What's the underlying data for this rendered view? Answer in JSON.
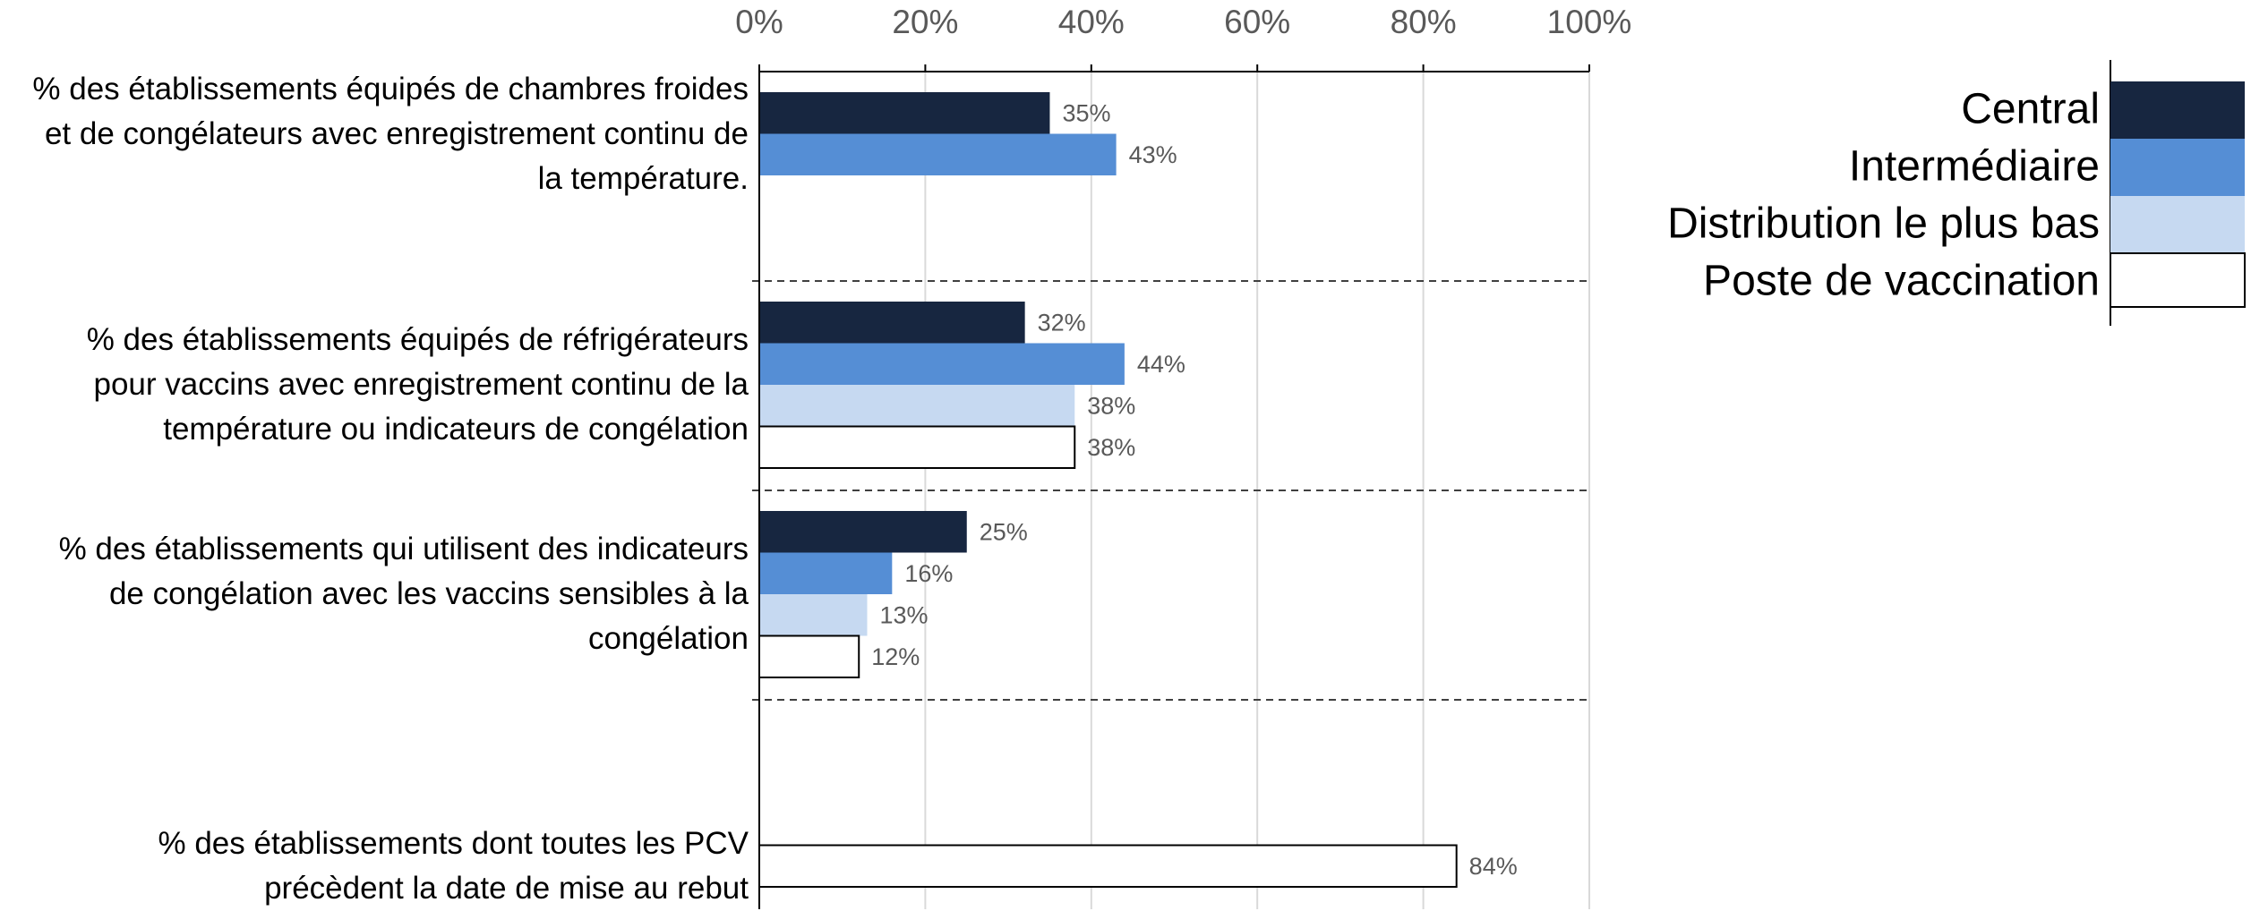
{
  "chart_data": {
    "type": "bar",
    "orientation": "horizontal",
    "categories": [
      "% des établissements équipés de chambres froides et de congélateurs avec enregistrement continu de la température.",
      "% des établissements équipés de réfrigérateurs pour vaccins avec enregistrement continu de la température ou indicateurs de congélation",
      "% des établissements qui utilisent des indicateurs de congélation avec les vaccins sensibles à la congélation",
      "% des établissements dont toutes les PCV précèdent la date de mise au rebut"
    ],
    "series": [
      {
        "name": "Central",
        "color": "#172640",
        "values": [
          35,
          32,
          25,
          null
        ],
        "value_labels": [
          "35%",
          "32%",
          "25%",
          null
        ]
      },
      {
        "name": "Intermédiaire",
        "color": "#558ed5",
        "values": [
          43,
          44,
          16,
          null
        ],
        "value_labels": [
          "43%",
          "44%",
          "16%",
          null
        ]
      },
      {
        "name": "Distribution le plus bas",
        "color": "#c6d9f1",
        "values": [
          null,
          38,
          13,
          null
        ],
        "value_labels": [
          null,
          "38%",
          "13%",
          null
        ]
      },
      {
        "name": "Poste de vaccination",
        "color": "#ffffff",
        "values": [
          null,
          38,
          12,
          84
        ],
        "value_labels": [
          null,
          "38%",
          "12%",
          "84%"
        ]
      }
    ],
    "xlim": [
      0,
      100
    ],
    "xticks": [
      {
        "value": 0,
        "label": "0%"
      },
      {
        "value": 20,
        "label": "20%"
      },
      {
        "value": 40,
        "label": "40%"
      },
      {
        "value": 60,
        "label": "60%"
      },
      {
        "value": 80,
        "label": "80%"
      },
      {
        "value": 100,
        "label": "100%"
      }
    ],
    "grid": true,
    "legend": "right"
  }
}
